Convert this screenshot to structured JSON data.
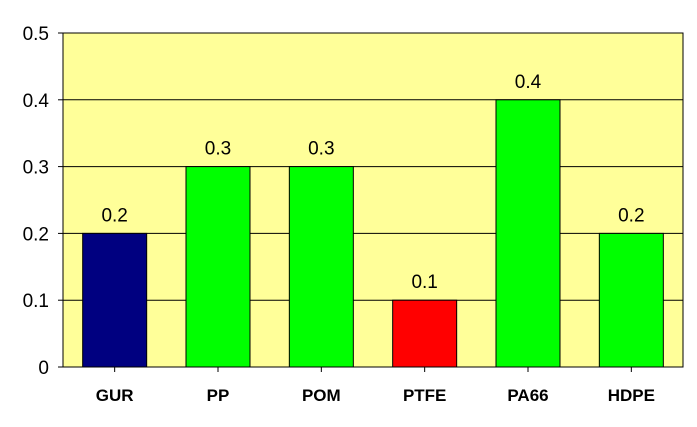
{
  "chart_data": {
    "type": "bar",
    "categories": [
      "GUR",
      "PP",
      "POM",
      "PTFE",
      "PA66",
      "HDPE"
    ],
    "values": [
      0.2,
      0.3,
      0.3,
      0.1,
      0.4,
      0.2
    ],
    "data_labels": [
      "0.2",
      "0.3",
      "0.3",
      "0.1",
      "0.4",
      "0.2"
    ],
    "ylim": [
      0,
      0.5
    ],
    "yticks": [
      0,
      0.1,
      0.2,
      0.3,
      0.4,
      0.5
    ],
    "ytick_labels": [
      "0",
      "0.1",
      "0.2",
      "0.3",
      "0.4",
      "0.5"
    ],
    "title": "",
    "xlabel": "",
    "ylabel": "",
    "grid": true,
    "legend": "none",
    "bar_colors": [
      "#000080",
      "#00ff00",
      "#00ff00",
      "#ff0000",
      "#00ff00",
      "#00ff00"
    ],
    "plot_background": "#ffff99"
  }
}
